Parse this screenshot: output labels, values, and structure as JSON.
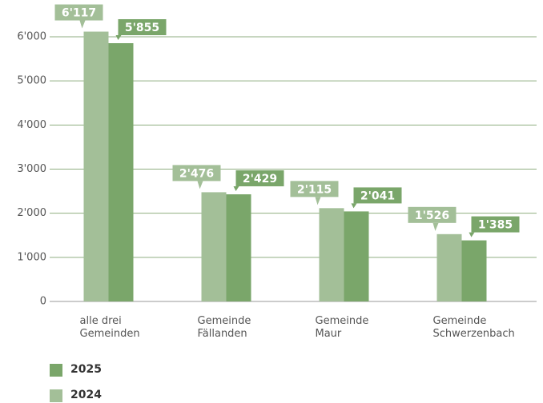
{
  "chart_data": {
    "type": "bar",
    "categories": [
      "alle drei\nGemeinden",
      "Gemeinde\nFällanden",
      "Gemeinde\nMaur",
      "Gemeinde\nSchwerzenbach"
    ],
    "series": [
      {
        "name": "2024",
        "color": "#a3bf98",
        "values": [
          6117,
          2476,
          2115,
          1526
        ],
        "value_labels": [
          "6'117",
          "2'476",
          "2'115",
          "1'526"
        ]
      },
      {
        "name": "2025",
        "color": "#7aa66a",
        "values": [
          5855,
          2429,
          2041,
          1385
        ],
        "value_labels": [
          "5'855",
          "2'429",
          "2'041",
          "1'385"
        ]
      }
    ],
    "ylim": [
      0,
      6000
    ],
    "yticks": [
      0,
      {
        "value": 1000,
        "label": "1'000"
      },
      {
        "value": 2000,
        "label": "2'000"
      },
      {
        "value": 3000,
        "label": "3'000"
      },
      {
        "value": 4000,
        "label": "4'000"
      },
      {
        "value": 5000,
        "label": "5'000"
      },
      {
        "value": 6000,
        "label": "6'000"
      }
    ],
    "grid": true
  }
}
